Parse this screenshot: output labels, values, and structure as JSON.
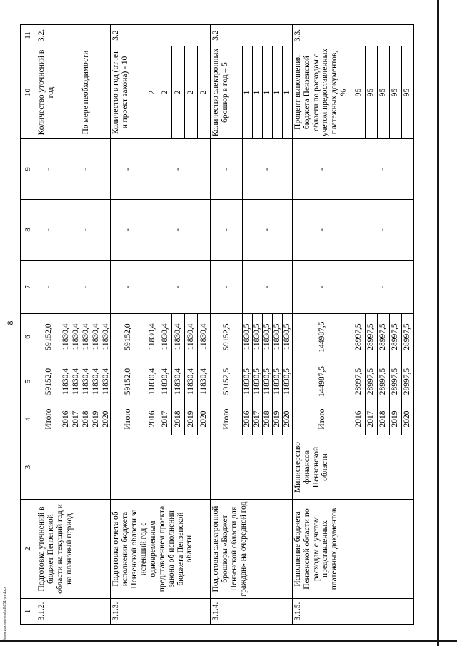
{
  "page": {
    "number": "8",
    "footer_path": "с:\\мои документы\\pdf\\751-пп.docx"
  },
  "table": {
    "header_numbers": [
      "1",
      "2",
      "3",
      "4",
      "5",
      "6",
      "7",
      "8",
      "9",
      "10",
      "11"
    ],
    "empty_value": "-",
    "rows": [
      {
        "num": "3.1.2.",
        "name": "Подготовка уточнений в бюджет Пензенской области на текущий год и на плановый период",
        "executor": "",
        "indicator": "Количество уточнений в год",
        "indicator_value_merged": "По мере необходимости",
        "link": "3.2.",
        "subrows": [
          {
            "period": "Итого",
            "a5": "59152,0",
            "a6": "59152,0"
          },
          {
            "period": "2016",
            "a5": "11830,4",
            "a6": "11830,4"
          },
          {
            "period": "2017",
            "a5": "11830,4",
            "a6": "11830,4"
          },
          {
            "period": "2018",
            "a5": "11830,4",
            "a6": "11830,4"
          },
          {
            "period": "2019",
            "a5": "11830,4",
            "a6": "11830,4"
          },
          {
            "period": "2020",
            "a5": "11830,4",
            "a6": "11830,4"
          }
        ]
      },
      {
        "num": "3.1.3.",
        "name": "Подготовка отчета об исполнении бюджета Пензенской области за истекший год с одновременным представлением проекта закона об исполнении бюджета Пензенской области",
        "executor": "",
        "indicator": "Количество в год (отчет и проект закона) - 10",
        "indicator_value_merged": null,
        "link": "3.2",
        "subrows": [
          {
            "period": "Итого",
            "a5": "59152,0",
            "a6": "59152,0"
          },
          {
            "period": "2016",
            "a5": "11830,4",
            "a6": "11830,4",
            "ind": "2"
          },
          {
            "period": "2017",
            "a5": "11830,4",
            "a6": "11830,4",
            "ind": "2"
          },
          {
            "period": "2018",
            "a5": "11830,4",
            "a6": "11830,4",
            "ind": "2"
          },
          {
            "period": "2019",
            "a5": "11830,4",
            "a6": "11830,4",
            "ind": "2"
          },
          {
            "period": "2020",
            "a5": "11830,4",
            "a6": "11830,4",
            "ind": "2"
          }
        ]
      },
      {
        "num": "3.1.4.",
        "name": "Подготовка электронной брошюры «Бюджет Пензенской области для граждан» на очередной год",
        "executor": "",
        "indicator": "Количество электронных брошюр в год – 5",
        "indicator_value_merged": null,
        "link": "3.2",
        "subrows": [
          {
            "period": "Итого",
            "a5": "59152,5",
            "a6": "59152,5"
          },
          {
            "period": "2016",
            "a5": "11830,5",
            "a6": "11830,5",
            "ind": "1"
          },
          {
            "period": "2017",
            "a5": "11830,5",
            "a6": "11830,5",
            "ind": "1"
          },
          {
            "period": "2018",
            "a5": "11830,5",
            "a6": "11830,5",
            "ind": "1"
          },
          {
            "period": "2019",
            "a5": "11830,5",
            "a6": "11830,5",
            "ind": "1"
          },
          {
            "period": "2020",
            "a5": "11830,5",
            "a6": "11830,5",
            "ind": "1"
          }
        ]
      },
      {
        "num": "3.1.5.",
        "name": "Исполнение бюджета Пензенской области по расходам с учетом представленных платежных документов",
        "executor": "Министерство финансов Пензенской области",
        "indicator": "Процент выполнения бюджета Пензенской области по расходам с учетом предоставленных платежных документов, %",
        "indicator_value_merged": null,
        "link": "3.3.",
        "subrows": [
          {
            "period": "Итого",
            "a5": "144987,5",
            "a6": "144987,5"
          },
          {
            "period": "2016",
            "a5": "28997,5",
            "a6": "28997,5",
            "ind": "95"
          },
          {
            "period": "2017",
            "a5": "28997,5",
            "a6": "28997,5",
            "ind": "95"
          },
          {
            "period": "2018",
            "a5": "28997,5",
            "a6": "28997,5",
            "ind": "95"
          },
          {
            "period": "2019",
            "a5": "28997,5",
            "a6": "28997,5",
            "ind": "95"
          },
          {
            "period": "2020",
            "a5": "28997,5",
            "a6": "28997,5",
            "ind": "95"
          }
        ]
      }
    ]
  }
}
